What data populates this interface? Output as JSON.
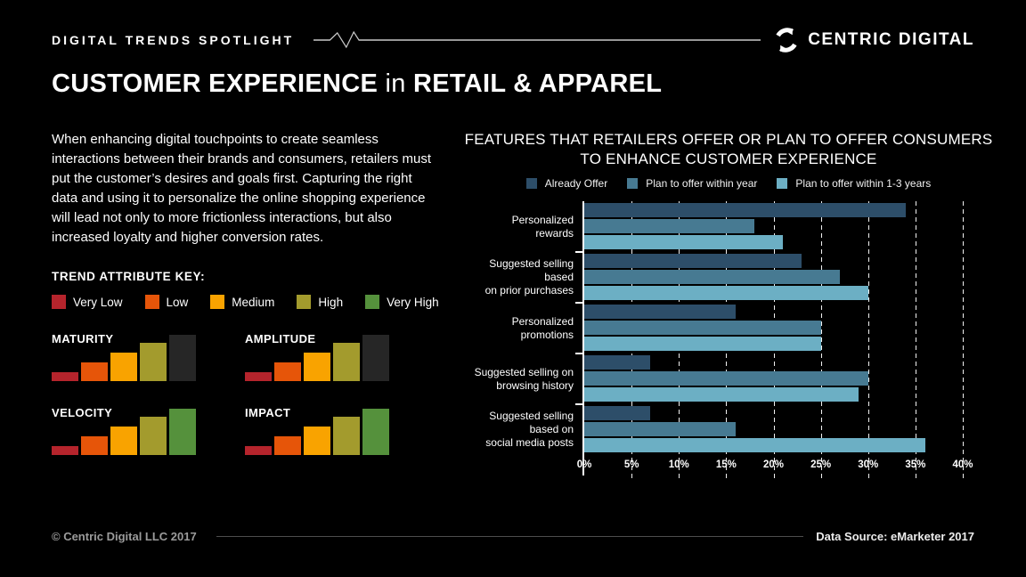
{
  "header": {
    "eyebrow": "DIGITAL TRENDS SPOTLIGHT",
    "brand_name": "CENTRIC DIGITAL"
  },
  "title": {
    "part1": "CUSTOMER EXPERIENCE",
    "connector": " in ",
    "part2": "RETAIL & APPAREL"
  },
  "intro": "When enhancing digital touchpoints to create seamless interactions between their brands and consumers, retailers must put the customer’s desires and goals first. Capturing the right data and using it to personalize the online shopping experience will lead not only to more frictionless interactions, but also increased loyalty and higher conversion rates.",
  "trend_key": {
    "title": "TREND ATTRIBUTE KEY:",
    "levels": [
      {
        "label": "Very Low",
        "color": "#b5242c"
      },
      {
        "label": "Low",
        "color": "#e65509"
      },
      {
        "label": "Medium",
        "color": "#f9a300"
      },
      {
        "label": "High",
        "color": "#a39b2d"
      },
      {
        "label": "Very High",
        "color": "#55913c"
      }
    ],
    "inactive_color": "#262626"
  },
  "attributes": [
    {
      "name": "MATURITY",
      "level": 4,
      "level_label": "High"
    },
    {
      "name": "AMPLITUDE",
      "level": 4,
      "level_label": "High"
    },
    {
      "name": "VELOCITY",
      "level": 5,
      "level_label": "Very High"
    },
    {
      "name": "IMPACT",
      "level": 5,
      "level_label": "Very High"
    }
  ],
  "chart_data": {
    "type": "bar",
    "orientation": "horizontal",
    "title_line1": "FEATURES THAT RETAILERS OFFER OR PLAN TO OFFER CONSUMERS",
    "title_line2": "TO ENHANCE CUSTOMER EXPERIENCE",
    "categories": [
      "Personalized rewards",
      "Suggested selling based on prior purchases",
      "Personalized promotions",
      "Suggested selling on browsing history",
      "Suggested selling based on social media posts"
    ],
    "category_lines": [
      [
        "Personalized",
        "rewards"
      ],
      [
        "Suggested selling based",
        "on prior purchases"
      ],
      [
        "Personalized",
        "promotions"
      ],
      [
        "Suggested selling  on",
        "browsing history"
      ],
      [
        "Suggested selling based on",
        "social media posts"
      ]
    ],
    "series": [
      {
        "name": "Already Offer",
        "color": "#2d4e69",
        "values": [
          34,
          23,
          16,
          7,
          7
        ]
      },
      {
        "name": "Plan to offer within year",
        "color": "#477a92",
        "values": [
          18,
          27,
          25,
          30,
          16
        ]
      },
      {
        "name": "Plan to offer within 1-3 years",
        "color": "#6cafc4",
        "values": [
          21,
          30,
          25,
          29,
          36
        ]
      }
    ],
    "x_ticks": [
      "0%",
      "5%",
      "10%",
      "15%",
      "20%",
      "25%",
      "30%",
      "35%",
      "40%"
    ],
    "xlim": [
      0,
      40
    ],
    "unit": "%",
    "grid": "dashed-vertical",
    "legend_position": "top-center"
  },
  "footer": {
    "copyright": "© Centric Digital LLC 2017",
    "source": "Data Source: eMarketer 2017"
  }
}
